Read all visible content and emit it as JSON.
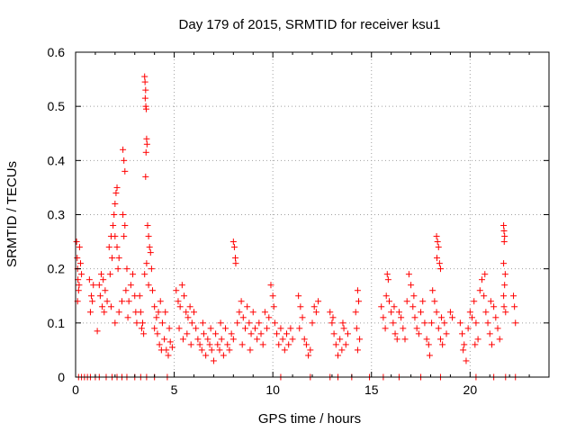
{
  "chart_data": {
    "type": "scatter",
    "title": "Day 179 of 2015, SRMTID for receiver ksu1",
    "xlabel": "GPS time / hours",
    "ylabel": "SRMTID / TECUs",
    "xlim": [
      0,
      24
    ],
    "ylim": [
      0,
      0.6
    ],
    "x_ticks": [
      0,
      5,
      10,
      15,
      20
    ],
    "x_tick_labels": [
      "0",
      "5",
      "10",
      "15",
      "20"
    ],
    "y_ticks": [
      0,
      0.1,
      0.2,
      0.3,
      0.4,
      0.5,
      0.6
    ],
    "y_tick_labels": [
      "0",
      "0.1",
      "0.2",
      "0.3",
      "0.4",
      "0.5",
      "0.6"
    ],
    "grid": true,
    "marker": "+",
    "color": "#ff0000",
    "series": [
      {
        "name": "SRMTID",
        "points": [
          [
            0.05,
            0.25
          ],
          [
            0.08,
            0.22
          ],
          [
            0.1,
            0.2
          ],
          [
            0.12,
            0.18
          ],
          [
            0.15,
            0.16
          ],
          [
            0.1,
            0.14
          ],
          [
            0.2,
            0.24
          ],
          [
            0.25,
            0.21
          ],
          [
            0.18,
            0.17
          ],
          [
            0.3,
            0.19
          ],
          [
            0.7,
            0.18
          ],
          [
            0.8,
            0.15
          ],
          [
            0.75,
            0.12
          ],
          [
            0.9,
            0.17
          ],
          [
            0.85,
            0.14
          ],
          [
            1.2,
            0.17
          ],
          [
            1.3,
            0.19
          ],
          [
            1.25,
            0.15
          ],
          [
            1.35,
            0.13
          ],
          [
            1.4,
            0.18
          ],
          [
            1.45,
            0.12
          ],
          [
            1.5,
            0.16
          ],
          [
            1.1,
            0.085
          ],
          [
            1.6,
            0.14
          ],
          [
            1.7,
            0.24
          ],
          [
            1.8,
            0.26
          ],
          [
            1.85,
            0.22
          ],
          [
            1.9,
            0.28
          ],
          [
            1.95,
            0.3
          ],
          [
            2.0,
            0.32
          ],
          [
            2.05,
            0.34
          ],
          [
            2.1,
            0.35
          ],
          [
            2.0,
            0.26
          ],
          [
            2.1,
            0.24
          ],
          [
            2.15,
            0.2
          ],
          [
            2.2,
            0.22
          ],
          [
            1.75,
            0.19
          ],
          [
            1.8,
            0.13
          ],
          [
            2.0,
            0.1
          ],
          [
            2.2,
            0.12
          ],
          [
            2.4,
            0.42
          ],
          [
            2.45,
            0.4
          ],
          [
            2.5,
            0.38
          ],
          [
            2.4,
            0.3
          ],
          [
            2.5,
            0.28
          ],
          [
            2.45,
            0.26
          ],
          [
            2.6,
            0.2
          ],
          [
            2.55,
            0.16
          ],
          [
            2.7,
            0.14
          ],
          [
            2.8,
            0.17
          ],
          [
            2.9,
            0.19
          ],
          [
            3.0,
            0.15
          ],
          [
            3.05,
            0.12
          ],
          [
            3.1,
            0.1
          ],
          [
            2.65,
            0.11
          ],
          [
            2.35,
            0.14
          ],
          [
            3.5,
            0.555
          ],
          [
            3.52,
            0.545
          ],
          [
            3.55,
            0.53
          ],
          [
            3.53,
            0.515
          ],
          [
            3.56,
            0.5
          ],
          [
            3.58,
            0.495
          ],
          [
            3.6,
            0.44
          ],
          [
            3.62,
            0.43
          ],
          [
            3.57,
            0.415
          ],
          [
            3.55,
            0.37
          ],
          [
            3.65,
            0.28
          ],
          [
            3.7,
            0.26
          ],
          [
            3.75,
            0.24
          ],
          [
            3.8,
            0.23
          ],
          [
            3.6,
            0.21
          ],
          [
            3.5,
            0.19
          ],
          [
            3.4,
            0.1
          ],
          [
            3.35,
            0.09
          ],
          [
            3.45,
            0.08
          ],
          [
            3.3,
            0.12
          ],
          [
            3.25,
            0.15
          ],
          [
            3.7,
            0.17
          ],
          [
            3.85,
            0.2
          ],
          [
            3.9,
            0.16
          ],
          [
            4.0,
            0.13
          ],
          [
            4.1,
            0.11
          ],
          [
            4.2,
            0.12
          ],
          [
            4.3,
            0.14
          ],
          [
            4.0,
            0.09
          ],
          [
            4.15,
            0.08
          ],
          [
            4.25,
            0.06
          ],
          [
            4.35,
            0.05
          ],
          [
            4.4,
            0.1
          ],
          [
            4.5,
            0.07
          ],
          [
            4.6,
            0.05
          ],
          [
            4.7,
            0.04
          ],
          [
            4.8,
            0.065
          ],
          [
            4.9,
            0.055
          ],
          [
            4.55,
            0.12
          ],
          [
            4.75,
            0.09
          ],
          [
            5.1,
            0.16
          ],
          [
            5.2,
            0.14
          ],
          [
            5.3,
            0.13
          ],
          [
            5.4,
            0.17
          ],
          [
            5.5,
            0.15
          ],
          [
            5.6,
            0.12
          ],
          [
            5.7,
            0.11
          ],
          [
            5.8,
            0.13
          ],
          [
            5.9,
            0.1
          ],
          [
            6.0,
            0.12
          ],
          [
            5.25,
            0.09
          ],
          [
            5.45,
            0.07
          ],
          [
            5.65,
            0.08
          ],
          [
            5.85,
            0.06
          ],
          [
            6.1,
            0.09
          ],
          [
            6.2,
            0.07
          ],
          [
            6.3,
            0.06
          ],
          [
            6.4,
            0.05
          ],
          [
            6.5,
            0.08
          ],
          [
            6.6,
            0.04
          ],
          [
            6.7,
            0.07
          ],
          [
            6.8,
            0.06
          ],
          [
            6.9,
            0.05
          ],
          [
            7.0,
            0.03
          ],
          [
            7.1,
            0.08
          ],
          [
            7.2,
            0.06
          ],
          [
            7.3,
            0.05
          ],
          [
            7.4,
            0.07
          ],
          [
            7.5,
            0.04
          ],
          [
            7.6,
            0.09
          ],
          [
            7.7,
            0.06
          ],
          [
            7.8,
            0.05
          ],
          [
            7.9,
            0.08
          ],
          [
            6.45,
            0.1
          ],
          [
            6.85,
            0.09
          ],
          [
            7.35,
            0.1
          ],
          [
            8.0,
            0.25
          ],
          [
            8.05,
            0.24
          ],
          [
            8.1,
            0.22
          ],
          [
            8.12,
            0.21
          ],
          [
            8.0,
            0.07
          ],
          [
            8.2,
            0.1
          ],
          [
            8.3,
            0.12
          ],
          [
            8.4,
            0.14
          ],
          [
            8.5,
            0.11
          ],
          [
            8.6,
            0.09
          ],
          [
            8.7,
            0.13
          ],
          [
            8.8,
            0.1
          ],
          [
            8.9,
            0.08
          ],
          [
            9.0,
            0.12
          ],
          [
            9.1,
            0.09
          ],
          [
            9.2,
            0.07
          ],
          [
            8.45,
            0.06
          ],
          [
            8.85,
            0.05
          ],
          [
            9.3,
            0.1
          ],
          [
            9.4,
            0.08
          ],
          [
            9.5,
            0.06
          ],
          [
            9.6,
            0.12
          ],
          [
            9.7,
            0.09
          ],
          [
            9.8,
            0.11
          ],
          [
            9.9,
            0.17
          ],
          [
            10.0,
            0.15
          ],
          [
            10.05,
            0.13
          ],
          [
            10.1,
            0.1
          ],
          [
            10.2,
            0.08
          ],
          [
            10.3,
            0.06
          ],
          [
            10.4,
            0.09
          ],
          [
            10.5,
            0.07
          ],
          [
            10.6,
            0.05
          ],
          [
            10.7,
            0.08
          ],
          [
            10.8,
            0.06
          ],
          [
            10.9,
            0.09
          ],
          [
            11.0,
            0.07
          ],
          [
            11.3,
            0.15
          ],
          [
            11.4,
            0.13
          ],
          [
            11.5,
            0.11
          ],
          [
            11.35,
            0.09
          ],
          [
            11.6,
            0.07
          ],
          [
            11.7,
            0.06
          ],
          [
            11.8,
            0.04
          ],
          [
            11.9,
            0.05
          ],
          [
            12.0,
            0.1
          ],
          [
            12.1,
            0.13
          ],
          [
            12.2,
            0.12
          ],
          [
            12.3,
            0.14
          ],
          [
            12.9,
            0.12
          ],
          [
            13.0,
            0.1
          ],
          [
            13.1,
            0.08
          ],
          [
            13.2,
            0.06
          ],
          [
            13.3,
            0.04
          ],
          [
            13.4,
            0.07
          ],
          [
            13.5,
            0.05
          ],
          [
            13.6,
            0.09
          ],
          [
            13.7,
            0.06
          ],
          [
            13.8,
            0.08
          ],
          [
            13.05,
            0.11
          ],
          [
            13.55,
            0.1
          ],
          [
            14.2,
            0.12
          ],
          [
            14.3,
            0.16
          ],
          [
            14.35,
            0.14
          ],
          [
            14.25,
            0.09
          ],
          [
            14.4,
            0.07
          ],
          [
            14.3,
            0.05
          ],
          [
            15.5,
            0.13
          ],
          [
            15.6,
            0.11
          ],
          [
            15.7,
            0.09
          ],
          [
            15.8,
            0.19
          ],
          [
            15.85,
            0.18
          ],
          [
            15.9,
            0.14
          ],
          [
            16.0,
            0.12
          ],
          [
            16.1,
            0.1
          ],
          [
            16.2,
            0.08
          ],
          [
            16.3,
            0.07
          ],
          [
            16.4,
            0.12
          ],
          [
            16.5,
            0.11
          ],
          [
            16.6,
            0.09
          ],
          [
            16.7,
            0.07
          ],
          [
            16.8,
            0.14
          ],
          [
            16.9,
            0.19
          ],
          [
            17.0,
            0.17
          ],
          [
            17.1,
            0.13
          ],
          [
            17.2,
            0.11
          ],
          [
            17.3,
            0.09
          ],
          [
            17.4,
            0.08
          ],
          [
            17.5,
            0.12
          ],
          [
            17.6,
            0.14
          ],
          [
            17.7,
            0.1
          ],
          [
            17.8,
            0.07
          ],
          [
            17.9,
            0.06
          ],
          [
            15.75,
            0.15
          ],
          [
            16.15,
            0.13
          ],
          [
            17.15,
            0.15
          ],
          [
            18.1,
            0.16
          ],
          [
            18.2,
            0.14
          ],
          [
            18.3,
            0.26
          ],
          [
            18.35,
            0.25
          ],
          [
            18.4,
            0.24
          ],
          [
            18.32,
            0.22
          ],
          [
            18.45,
            0.21
          ],
          [
            18.5,
            0.2
          ],
          [
            18.3,
            0.12
          ],
          [
            18.4,
            0.09
          ],
          [
            18.5,
            0.07
          ],
          [
            18.6,
            0.06
          ],
          [
            18.7,
            0.1
          ],
          [
            18.8,
            0.08
          ],
          [
            19.0,
            0.12
          ],
          [
            19.1,
            0.11
          ],
          [
            17.95,
            0.04
          ],
          [
            18.05,
            0.1
          ],
          [
            18.55,
            0.11
          ],
          [
            19.5,
            0.1
          ],
          [
            19.6,
            0.08
          ],
          [
            19.7,
            0.06
          ],
          [
            19.8,
            0.03
          ],
          [
            19.9,
            0.09
          ],
          [
            20.0,
            0.12
          ],
          [
            20.1,
            0.11
          ],
          [
            20.2,
            0.14
          ],
          [
            20.3,
            0.1
          ],
          [
            20.4,
            0.07
          ],
          [
            20.5,
            0.16
          ],
          [
            20.6,
            0.18
          ],
          [
            20.7,
            0.15
          ],
          [
            20.8,
            0.12
          ],
          [
            20.9,
            0.1
          ],
          [
            21.0,
            0.08
          ],
          [
            21.1,
            0.06
          ],
          [
            21.2,
            0.13
          ],
          [
            21.3,
            0.11
          ],
          [
            21.4,
            0.09
          ],
          [
            21.5,
            0.07
          ],
          [
            19.65,
            0.05
          ],
          [
            20.25,
            0.06
          ],
          [
            20.75,
            0.19
          ],
          [
            21.05,
            0.14
          ],
          [
            21.7,
            0.28
          ],
          [
            21.72,
            0.27
          ],
          [
            21.75,
            0.26
          ],
          [
            21.73,
            0.25
          ],
          [
            21.7,
            0.21
          ],
          [
            21.78,
            0.19
          ],
          [
            21.75,
            0.17
          ],
          [
            21.7,
            0.15
          ],
          [
            21.72,
            0.13
          ],
          [
            21.8,
            0.12
          ],
          [
            22.2,
            0.15
          ],
          [
            22.25,
            0.13
          ],
          [
            22.3,
            0.1
          ],
          [
            0.15,
            0
          ],
          [
            0.3,
            0
          ],
          [
            0.45,
            0
          ],
          [
            0.6,
            0
          ],
          [
            0.75,
            0
          ],
          [
            1.0,
            0
          ],
          [
            1.2,
            0
          ],
          [
            1.55,
            0
          ],
          [
            1.85,
            0
          ],
          [
            2.1,
            0
          ],
          [
            2.35,
            0
          ],
          [
            2.6,
            0
          ],
          [
            3.0,
            0
          ],
          [
            3.3,
            0
          ],
          [
            3.6,
            0
          ],
          [
            4.0,
            0
          ],
          [
            4.65,
            0
          ],
          [
            10.4,
            0
          ],
          [
            11.9,
            0
          ],
          [
            12.9,
            0
          ],
          [
            13.3,
            0
          ],
          [
            14.0,
            0
          ],
          [
            14.9,
            0
          ],
          [
            15.6,
            0
          ],
          [
            16.4,
            0
          ],
          [
            17.5,
            0
          ],
          [
            18.5,
            0
          ],
          [
            20.3,
            0
          ],
          [
            21.2,
            0
          ],
          [
            21.8,
            0
          ],
          [
            22.3,
            0
          ]
        ]
      }
    ]
  }
}
